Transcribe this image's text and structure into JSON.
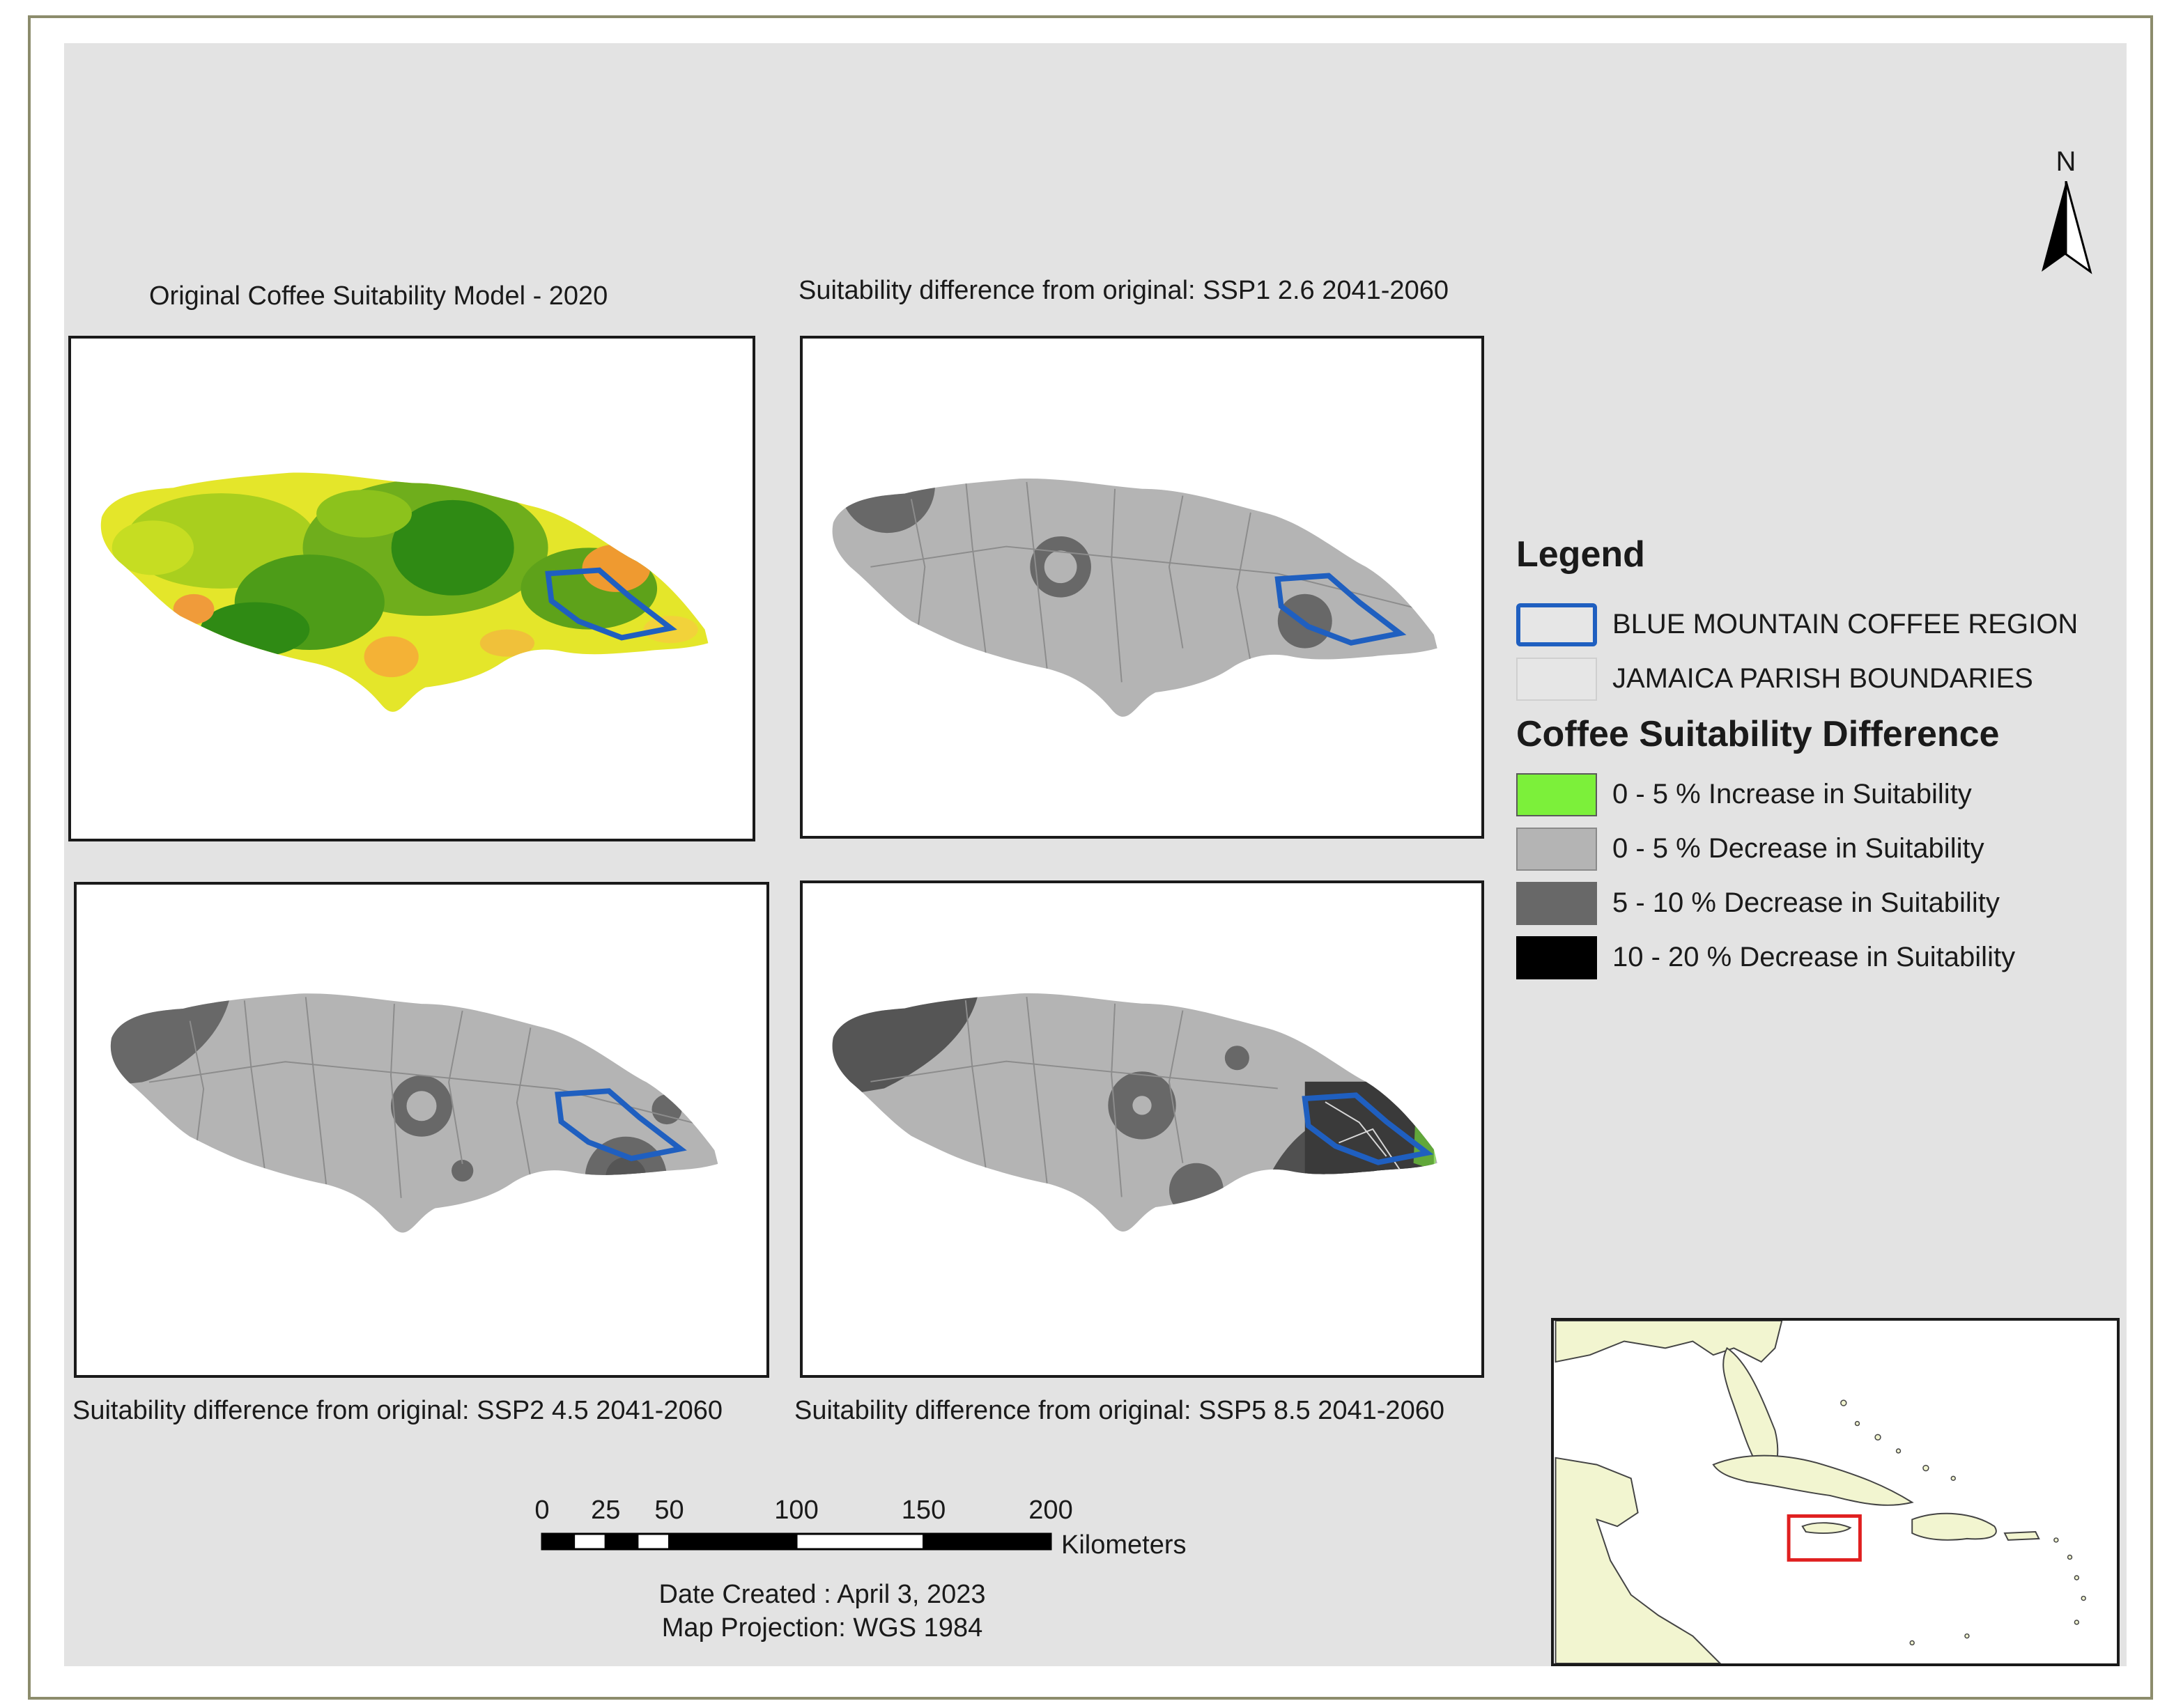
{
  "panels": {
    "original": {
      "title": "Original Coffee Suitability Model - 2020"
    },
    "ssp1": {
      "title": "Suitability difference from original: SSP1 2.6 2041-2060"
    },
    "ssp2": {
      "title": "Suitability difference from original: SSP2 4.5 2041-2060"
    },
    "ssp5": {
      "title": "Suitability difference from original: SSP5 8.5 2041-2060"
    }
  },
  "legend": {
    "heading": "Legend",
    "items": [
      {
        "label": "BLUE MOUNTAIN COFFEE REGION",
        "color": "#1f5fc0"
      },
      {
        "label": "JAMAICA PARISH BOUNDARIES",
        "color": "#e6e6e6"
      }
    ],
    "difference_heading": "Coffee Suitability Difference",
    "classes": [
      {
        "label": "0 - 5 % Increase in Suitability",
        "color": "#7cf03a"
      },
      {
        "label": "0 - 5 % Decrease in Suitability",
        "color": "#b4b4b4"
      },
      {
        "label": "5 - 10 % Decrease in Suitability",
        "color": "#686868"
      },
      {
        "label": "10 - 20 % Decrease in Suitability",
        "color": "#000000"
      }
    ]
  },
  "north_arrow": {
    "label": "N"
  },
  "scale_bar": {
    "ticks": [
      "0",
      "25",
      "50",
      "100",
      "150",
      "200"
    ],
    "tick_values": [
      0,
      25,
      50,
      100,
      150,
      200
    ],
    "unit": "Kilometers"
  },
  "footer": {
    "date": "Date Created : April 3, 2023",
    "projection": "Map Projection: WGS 1984"
  },
  "inset": {
    "highlight_color": "#e02020",
    "land_color": "#f2f5d0"
  }
}
